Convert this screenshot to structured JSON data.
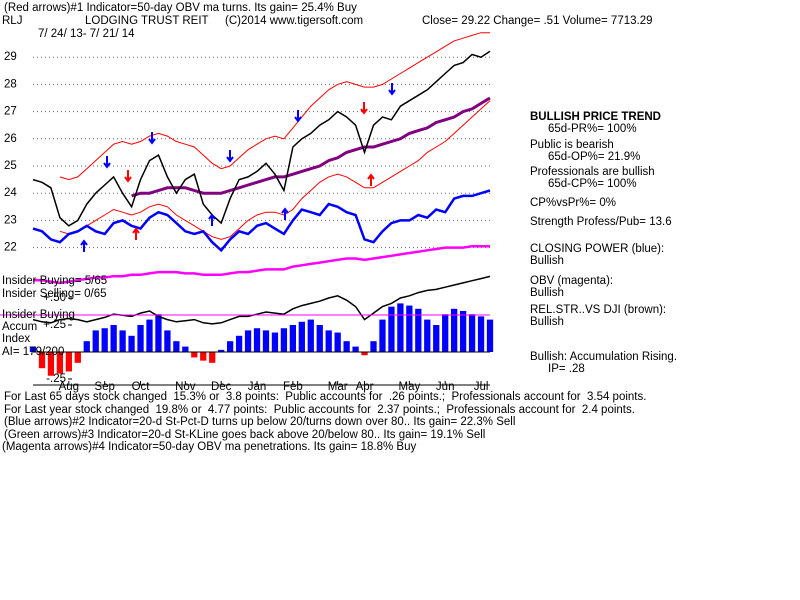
{
  "header": {
    "indicator_line": "(Red arrows)#1 Indicator=50-day OBV ma turns. Its gain= 25.4% Buy",
    "symbol": "RLJ",
    "company": "LODGING TRUST REIT",
    "copyright": "(C)2014 www.tigersoft.com",
    "quote": "Close= 29.22 Change= .51 Volume= 7713.29",
    "date_range": "7/ 24/ 13- 7/ 21/ 14"
  },
  "chart_data": [
    {
      "type": "line",
      "categories": [
        null,
        null,
        null,
        null,
        "Aug",
        null,
        null,
        null,
        "Sep",
        null,
        null,
        null,
        "Oct",
        null,
        null,
        null,
        null,
        "Nov",
        null,
        null,
        null,
        "Dec",
        null,
        null,
        null,
        "Jan",
        null,
        null,
        null,
        "Feb",
        null,
        null,
        null,
        null,
        "Mar",
        null,
        null,
        "Apr",
        null,
        null,
        null,
        null,
        "May",
        null,
        null,
        null,
        "Jun",
        null,
        null,
        null,
        "Jul",
        null
      ],
      "ylim": [
        20.5,
        30
      ],
      "yticks": [
        22,
        23,
        24,
        25,
        26,
        27,
        28,
        29
      ],
      "grid": true,
      "series": [
        {
          "color": "#ff0000",
          "values": [
            null,
            null,
            null,
            24.6,
            24.5,
            24.6,
            24.9,
            25.2,
            25.5,
            25.8,
            25.9,
            25.8,
            25.9,
            26.1,
            26.2,
            26.1,
            25.9,
            25.8,
            25.7,
            25.4,
            25.1,
            24.9,
            25.0,
            25.3,
            25.6,
            25.8,
            26.0,
            26.1,
            26.0,
            26.4,
            26.8,
            27.2,
            27.5,
            27.8,
            28.0,
            28.1,
            28.0,
            27.9,
            27.9,
            28.0,
            28.2,
            28.4,
            28.6,
            28.8,
            29.0,
            29.2,
            29.4,
            29.6,
            29.7,
            29.8,
            29.9,
            29.9
          ]
        },
        {
          "color": "#ff0000",
          "values": [
            null,
            null,
            null,
            22.6,
            22.5,
            22.6,
            22.8,
            23.0,
            23.2,
            23.4,
            23.3,
            23.2,
            23.3,
            23.5,
            23.6,
            23.5,
            23.2,
            23.0,
            22.8,
            22.6,
            22.4,
            22.3,
            22.4,
            22.7,
            23.0,
            23.2,
            23.3,
            23.3,
            23.2,
            23.4,
            23.8,
            24.1,
            24.4,
            24.6,
            24.7,
            24.6,
            24.4,
            24.2,
            24.2,
            24.4,
            24.6,
            24.8,
            25.0,
            25.2,
            25.5,
            25.7,
            25.9,
            26.2,
            26.5,
            26.8,
            27.1,
            27.4
          ]
        },
        {
          "color": "#800080",
          "width": 3,
          "values": [
            null,
            null,
            null,
            null,
            null,
            null,
            null,
            null,
            null,
            null,
            null,
            23.9,
            24.0,
            24.0,
            24.1,
            24.2,
            24.2,
            24.2,
            24.1,
            24.0,
            24.0,
            24.0,
            24.1,
            24.2,
            24.3,
            24.4,
            24.5,
            24.6,
            24.6,
            24.7,
            24.8,
            24.9,
            25.0,
            25.2,
            25.3,
            25.5,
            25.6,
            25.7,
            25.7,
            25.8,
            25.9,
            26.0,
            26.2,
            26.3,
            26.4,
            26.6,
            26.7,
            26.8,
            27.0,
            27.1,
            27.3,
            27.5
          ]
        },
        {
          "color": "#0000ff",
          "width": 2.5,
          "values": [
            22.7,
            22.6,
            22.3,
            22.2,
            22.5,
            22.6,
            22.8,
            22.6,
            22.5,
            22.9,
            23.0,
            22.8,
            22.7,
            23.1,
            23.3,
            23.2,
            22.9,
            22.6,
            22.5,
            22.6,
            22.2,
            21.9,
            22.3,
            22.6,
            22.5,
            22.8,
            22.9,
            22.7,
            22.5,
            23.0,
            23.4,
            23.3,
            23.2,
            23.6,
            23.5,
            23.3,
            23.2,
            22.3,
            22.2,
            22.6,
            22.9,
            23.0,
            23.0,
            23.2,
            23.1,
            23.4,
            23.3,
            23.8,
            23.9,
            23.9,
            24.0,
            24.1
          ]
        },
        {
          "color": "#ff00ff",
          "width": 2.5,
          "values": [
            20.8,
            20.8,
            20.75,
            20.7,
            20.75,
            20.8,
            20.85,
            20.9,
            20.9,
            20.95,
            20.95,
            21.0,
            21.0,
            21.05,
            21.1,
            21.1,
            21.1,
            21.05,
            21.05,
            21.0,
            21.0,
            21.0,
            21.05,
            21.1,
            21.1,
            21.15,
            21.2,
            21.2,
            21.2,
            21.3,
            21.35,
            21.4,
            21.45,
            21.5,
            21.55,
            21.6,
            21.6,
            21.55,
            21.6,
            21.65,
            21.7,
            21.75,
            21.8,
            21.85,
            21.9,
            21.95,
            22.0,
            22.0,
            22.0,
            22.05,
            22.05,
            22.05
          ]
        },
        {
          "color": "#000000",
          "width": 1.5,
          "values": [
            24.5,
            24.4,
            24.2,
            23.1,
            22.8,
            23.0,
            23.6,
            24.0,
            24.3,
            24.6,
            24.0,
            23.5,
            24.5,
            25.2,
            25.4,
            24.6,
            24.0,
            24.5,
            24.7,
            23.6,
            23.2,
            22.9,
            23.8,
            24.5,
            24.6,
            24.8,
            25.1,
            24.7,
            24.1,
            25.7,
            26.0,
            26.2,
            26.5,
            26.7,
            27.0,
            26.8,
            26.5,
            25.5,
            26.5,
            26.8,
            26.7,
            27.2,
            27.4,
            27.6,
            27.8,
            28.1,
            28.4,
            28.7,
            28.8,
            29.1,
            29.0,
            29.22
          ]
        }
      ]
    },
    {
      "type": "bar",
      "ylim": [
        -0.3,
        0.75
      ],
      "yticks": [
        {
          "value": 0.5,
          "label": "+.50"
        },
        {
          "value": 0.25,
          "label": "+.25"
        },
        {
          "value": -0.25,
          "label": "-.25"
        }
      ],
      "positive_color": "#0000ff",
      "negative_color": "#ff0000",
      "values": [
        0.05,
        -0.15,
        -0.22,
        -0.2,
        -0.18,
        -0.1,
        0.1,
        0.2,
        0.22,
        0.25,
        0.2,
        0.15,
        0.25,
        0.3,
        0.35,
        0.2,
        0.1,
        0.05,
        -0.05,
        -0.08,
        -0.1,
        0.02,
        0.1,
        0.15,
        0.2,
        0.22,
        0.2,
        0.18,
        0.22,
        0.25,
        0.28,
        0.3,
        0.25,
        0.2,
        0.18,
        0.1,
        0.05,
        -0.03,
        0.1,
        0.3,
        0.42,
        0.45,
        0.43,
        0.4,
        0.3,
        0.25,
        0.35,
        0.4,
        0.38,
        0.35,
        0.33,
        0.3
      ],
      "series": [
        {
          "color": "#000000",
          "width": 1.5,
          "values": [
            0.3,
            0.28,
            0.27,
            0.3,
            0.31,
            0.3,
            0.28,
            0.3,
            0.32,
            0.35,
            0.34,
            0.33,
            0.36,
            0.38,
            0.33,
            0.3,
            0.28,
            0.29,
            0.3,
            0.27,
            0.26,
            0.27,
            0.3,
            0.33,
            0.33,
            0.35,
            0.37,
            0.36,
            0.35,
            0.4,
            0.43,
            0.45,
            0.47,
            0.5,
            0.52,
            0.48,
            0.42,
            0.3,
            0.36,
            0.42,
            0.45,
            0.5,
            0.52,
            0.55,
            0.57,
            0.58,
            0.6,
            0.62,
            0.64,
            0.66,
            0.68,
            0.7
          ]
        }
      ]
    }
  ],
  "side_notes": {
    "trend": "BULLISH PRICE TREND",
    "pr": "65d-PR%= 100%",
    "public": "Public is bearish",
    "op": "65d-OP%= 21.9%",
    "professionals": "Professionals are bullish",
    "cp": "65d-CP%= 100%",
    "cp_vs_pr": "CP%vsPr%= 0%",
    "strength": "Strength Profess/Pub= 13.6",
    "closing_power": "CLOSING POWER (blue):",
    "closing_power_state": "Bullish",
    "obv": "OBV (magenta):",
    "obv_state": "Bullish",
    "rel_str": "REL.STR..VS DJI (brown):",
    "rel_str_state": "Bullish",
    "accumulation": "Bullish: Accumulation Rising.",
    "ip": "IP= .28"
  },
  "left_notes": {
    "insider_buying": "Insider Buying= 5/65",
    "insider_selling": "Insider Selling= 0/65",
    "panel_label_1": "Insider Buying",
    "panel_label_2": "Accum",
    "panel_label_3": "Index",
    "ai": "AI= 179/200"
  },
  "footer": [
    "For Last 65 days stock changed  15.3% or  3.8 points:  Public accounts for  .26 points.;  Professionals account for  3.54 points.",
    "For Last year stock changed  19.8% or  4.77 points:  Public accounts for  2.37 points.;  Professionals account for  2.4 points.",
    "(Blue arrows)#2 Indicator=20-d St-Pct-D turns up below 20/turns down over 80.. Its gain= 22.3% Sell",
    "(Green arrows)#3 Indicator=20-d St-KLine goes back above 20/below 80.. Its gain= 19.1% Sell",
    "(Magenta arrows)#4 Indicator=50-day OBV ma penetrations. Its gain= 18.8% Buy"
  ]
}
